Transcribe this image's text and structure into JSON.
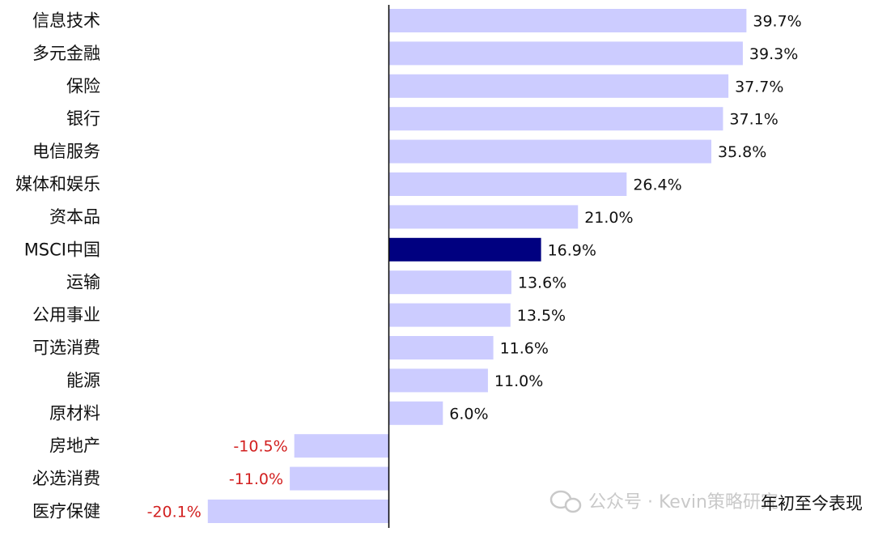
{
  "chart_data": {
    "type": "bar",
    "orientation": "horizontal",
    "categories": [
      "信息技术",
      "多元金融",
      "保险",
      "银行",
      "电信服务",
      "媒体和娱乐",
      "资本品",
      "MSCI中国",
      "运输",
      "公用事业",
      "可选消费",
      "能源",
      "原材料",
      "房地产",
      "必选消费",
      "医疗保健"
    ],
    "values": [
      39.7,
      39.3,
      37.7,
      37.1,
      35.8,
      26.4,
      21.0,
      16.9,
      13.6,
      13.5,
      11.6,
      11.0,
      6.0,
      -10.5,
      -11.0,
      -20.1
    ],
    "value_labels": [
      "39.7%",
      "39.3%",
      "37.7%",
      "37.1%",
      "35.8%",
      "26.4%",
      "21.0%",
      "16.9%",
      "13.6%",
      "13.5%",
      "11.6%",
      "11.0%",
      "6.0%",
      "-10.5%",
      "-11.0%",
      "-20.1%"
    ],
    "highlight_category": "MSCI中国",
    "annotation": "年初至今表现",
    "xlim": [
      -22,
      42
    ],
    "grid": false,
    "legend": "none"
  },
  "colors": {
    "bar": "#ccccff",
    "highlight_bar": "#000080",
    "negative_label": "#d21f1f",
    "positive_label": "#111111",
    "axis": "#000000"
  },
  "watermark": {
    "icon": "wechat-icon",
    "text": "公众号 · Kevin策略研究"
  }
}
